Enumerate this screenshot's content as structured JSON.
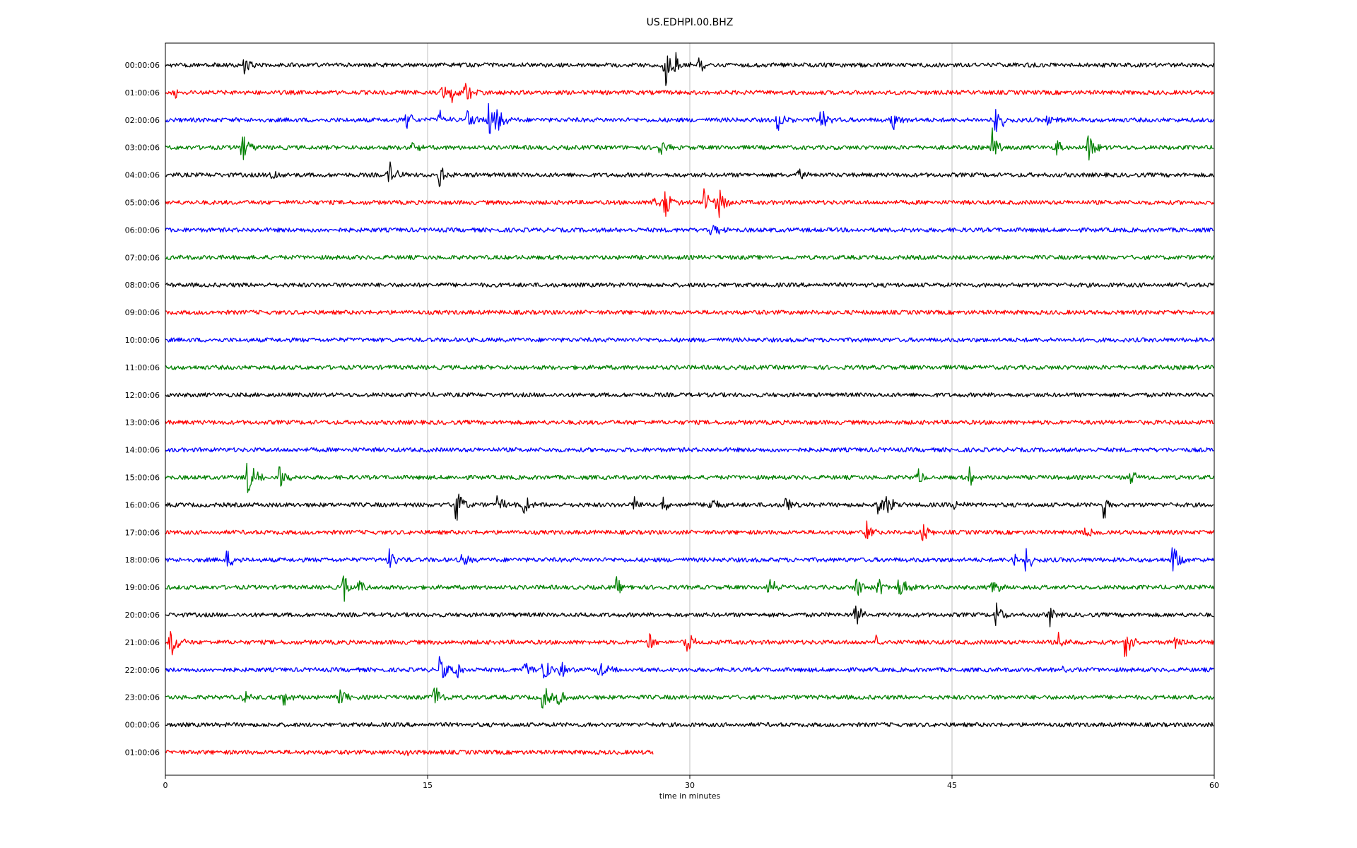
{
  "chart_data": {
    "type": "line",
    "title": "US.EDHPI.00.BHZ",
    "xlabel": "time in minutes",
    "ylabel": "",
    "xlim": [
      0,
      60
    ],
    "x_ticks": [
      "0",
      "15",
      "30",
      "45",
      "60"
    ],
    "grid": "vertical lines at 15, 30, 45",
    "line_colors": [
      "#000000",
      "#ff0000",
      "#0000ff",
      "#008000"
    ],
    "rows": [
      {
        "label": "00:00:06",
        "duration_min": 60,
        "events": [
          {
            "t": 4.5,
            "a": 1.4
          },
          {
            "t": 28.6,
            "a": 3.0
          },
          {
            "t": 29.2,
            "a": 1.3
          },
          {
            "t": 30.5,
            "a": 1.2
          }
        ]
      },
      {
        "label": "01:00:06",
        "duration_min": 60,
        "events": [
          {
            "t": 0.6,
            "a": 0.6
          },
          {
            "t": 15.8,
            "a": 1.0
          },
          {
            "t": 16.3,
            "a": 1.3
          },
          {
            "t": 17.1,
            "a": 1.6
          }
        ]
      },
      {
        "label": "02:00:06",
        "duration_min": 60,
        "events": [
          {
            "t": 13.8,
            "a": 1.3
          },
          {
            "t": 15.7,
            "a": 1.2
          },
          {
            "t": 17.3,
            "a": 1.4
          },
          {
            "t": 18.5,
            "a": 2.1
          },
          {
            "t": 19.0,
            "a": 1.6
          },
          {
            "t": 35.0,
            "a": 1.4
          },
          {
            "t": 37.5,
            "a": 1.8
          },
          {
            "t": 41.6,
            "a": 1.2
          },
          {
            "t": 47.5,
            "a": 2.0
          },
          {
            "t": 50.5,
            "a": 1.0
          }
        ]
      },
      {
        "label": "03:00:06",
        "duration_min": 60,
        "events": [
          {
            "t": 4.4,
            "a": 1.8
          },
          {
            "t": 14.0,
            "a": 1.3
          },
          {
            "t": 28.3,
            "a": 1.1
          },
          {
            "t": 47.3,
            "a": 2.0
          },
          {
            "t": 51.0,
            "a": 1.2
          },
          {
            "t": 52.8,
            "a": 1.6
          }
        ]
      },
      {
        "label": "04:00:06",
        "duration_min": 60,
        "events": [
          {
            "t": 6.0,
            "a": 1.2
          },
          {
            "t": 12.8,
            "a": 1.6
          },
          {
            "t": 15.7,
            "a": 1.4
          },
          {
            "t": 36.2,
            "a": 0.9
          }
        ]
      },
      {
        "label": "05:00:06",
        "duration_min": 60,
        "events": [
          {
            "t": 28.0,
            "a": 1.3
          },
          {
            "t": 28.6,
            "a": 1.9
          },
          {
            "t": 30.8,
            "a": 1.6
          },
          {
            "t": 31.6,
            "a": 2.2
          }
        ]
      },
      {
        "label": "06:00:06",
        "duration_min": 60,
        "events": [
          {
            "t": 31.2,
            "a": 1.2
          }
        ]
      },
      {
        "label": "07:00:06",
        "duration_min": 60,
        "events": []
      },
      {
        "label": "08:00:06",
        "duration_min": 60,
        "events": []
      },
      {
        "label": "09:00:06",
        "duration_min": 60,
        "events": []
      },
      {
        "label": "10:00:06",
        "duration_min": 60,
        "events": []
      },
      {
        "label": "11:00:06",
        "duration_min": 60,
        "events": []
      },
      {
        "label": "12:00:06",
        "duration_min": 60,
        "events": []
      },
      {
        "label": "13:00:06",
        "duration_min": 60,
        "events": []
      },
      {
        "label": "14:00:06",
        "duration_min": 60,
        "events": []
      },
      {
        "label": "15:00:06",
        "duration_min": 60,
        "events": [
          {
            "t": 4.7,
            "a": 2.4
          },
          {
            "t": 6.5,
            "a": 1.6
          },
          {
            "t": 43.0,
            "a": 1.0
          },
          {
            "t": 46.0,
            "a": 1.0
          },
          {
            "t": 55.2,
            "a": 0.9
          }
        ]
      },
      {
        "label": "16:00:06",
        "duration_min": 60,
        "events": [
          {
            "t": 16.6,
            "a": 2.5
          },
          {
            "t": 19.0,
            "a": 1.3
          },
          {
            "t": 20.5,
            "a": 1.2
          },
          {
            "t": 26.8,
            "a": 1.3
          },
          {
            "t": 28.5,
            "a": 1.2
          },
          {
            "t": 31.1,
            "a": 1.3
          },
          {
            "t": 35.5,
            "a": 1.4
          },
          {
            "t": 40.8,
            "a": 1.8
          },
          {
            "t": 41.2,
            "a": 1.8
          },
          {
            "t": 45.1,
            "a": 1.2
          },
          {
            "t": 53.7,
            "a": 1.9
          }
        ]
      },
      {
        "label": "17:00:06",
        "duration_min": 60,
        "events": [
          {
            "t": 40.1,
            "a": 1.2
          },
          {
            "t": 43.3,
            "a": 1.4
          },
          {
            "t": 52.6,
            "a": 0.8
          }
        ]
      },
      {
        "label": "18:00:06",
        "duration_min": 60,
        "events": [
          {
            "t": 3.5,
            "a": 1.2
          },
          {
            "t": 12.8,
            "a": 1.2
          },
          {
            "t": 17.0,
            "a": 0.8
          },
          {
            "t": 48.4,
            "a": 1.8
          },
          {
            "t": 49.2,
            "a": 1.4
          },
          {
            "t": 57.6,
            "a": 1.9
          }
        ]
      },
      {
        "label": "19:00:06",
        "duration_min": 60,
        "events": [
          {
            "t": 10.2,
            "a": 1.6
          },
          {
            "t": 11.1,
            "a": 1.2
          },
          {
            "t": 25.8,
            "a": 1.0
          },
          {
            "t": 34.5,
            "a": 1.4
          },
          {
            "t": 39.5,
            "a": 1.5
          },
          {
            "t": 40.8,
            "a": 1.6
          },
          {
            "t": 42.0,
            "a": 1.4
          },
          {
            "t": 47.3,
            "a": 1.0
          },
          {
            "t": 50.0,
            "a": 0.8
          }
        ]
      },
      {
        "label": "20:00:06",
        "duration_min": 60,
        "events": [
          {
            "t": 24.0,
            "a": 0.9
          },
          {
            "t": 39.5,
            "a": 1.7
          },
          {
            "t": 47.5,
            "a": 1.6
          },
          {
            "t": 50.6,
            "a": 1.3
          }
        ]
      },
      {
        "label": "21:00:06",
        "duration_min": 60,
        "events": [
          {
            "t": 0.3,
            "a": 2.2
          },
          {
            "t": 27.7,
            "a": 1.1
          },
          {
            "t": 29.8,
            "a": 1.4
          },
          {
            "t": 40.6,
            "a": 0.8
          },
          {
            "t": 51.1,
            "a": 1.0
          },
          {
            "t": 54.9,
            "a": 2.0
          },
          {
            "t": 57.8,
            "a": 0.9
          }
        ]
      },
      {
        "label": "22:00:06",
        "duration_min": 60,
        "events": [
          {
            "t": 15.7,
            "a": 1.6
          },
          {
            "t": 16.6,
            "a": 1.2
          },
          {
            "t": 20.5,
            "a": 1.3
          },
          {
            "t": 21.6,
            "a": 1.6
          },
          {
            "t": 22.6,
            "a": 1.2
          },
          {
            "t": 24.8,
            "a": 1.3
          },
          {
            "t": 51.1,
            "a": 0.9
          }
        ]
      },
      {
        "label": "23:00:06",
        "duration_min": 60,
        "events": [
          {
            "t": 4.5,
            "a": 1.2
          },
          {
            "t": 6.8,
            "a": 1.2
          },
          {
            "t": 10.0,
            "a": 1.4
          },
          {
            "t": 15.4,
            "a": 1.8
          },
          {
            "t": 21.6,
            "a": 1.6
          },
          {
            "t": 22.5,
            "a": 1.0
          }
        ]
      },
      {
        "label": "00:00:06",
        "duration_min": 60,
        "events": [
          {
            "t": 24.2,
            "a": 0.6
          }
        ]
      },
      {
        "label": "01:00:06",
        "duration_min": 27.9,
        "events": [
          {
            "t": 13.6,
            "a": 0.5
          }
        ]
      }
    ]
  }
}
